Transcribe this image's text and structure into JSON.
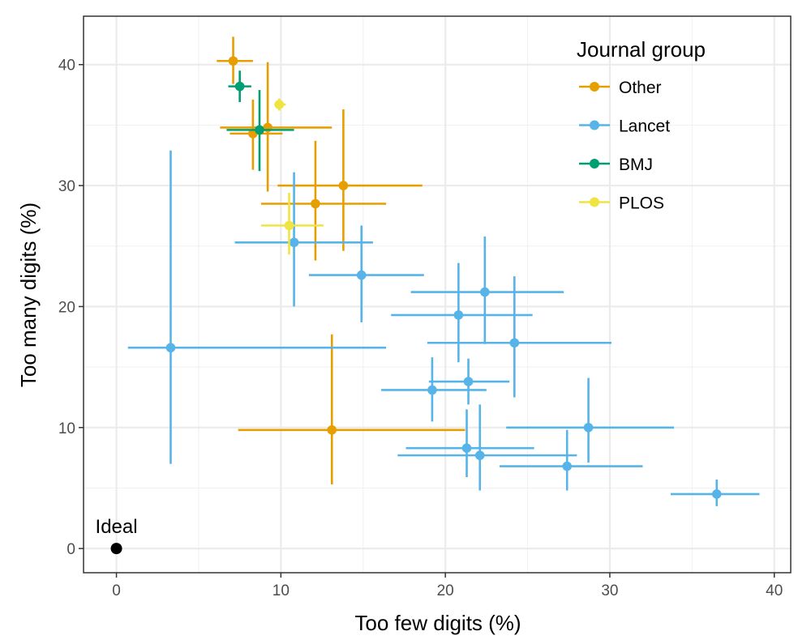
{
  "chart_data": {
    "type": "scatter",
    "xlabel": "Too few digits (%)",
    "ylabel": "Too many digits (%)",
    "xlim": [
      -2,
      41
    ],
    "ylim": [
      -2,
      44
    ],
    "x_ticks": [
      0,
      10,
      20,
      30,
      40
    ],
    "y_ticks": [
      0,
      10,
      20,
      30,
      40
    ],
    "grid": true,
    "legend": {
      "title": "Journal group",
      "position": "top-right",
      "entries": [
        {
          "name": "Other",
          "color": "#E69F00"
        },
        {
          "name": "Lancet",
          "color": "#56B4E9"
        },
        {
          "name": "BMJ",
          "color": "#009E73"
        },
        {
          "name": "PLOS",
          "color": "#F0E442"
        }
      ]
    },
    "annotations": [
      {
        "label": "Ideal",
        "x": 0,
        "y": 0,
        "color": "#000000"
      }
    ],
    "series": [
      {
        "name": "Other",
        "color": "#E69F00",
        "points": [
          {
            "x": 7.1,
            "y": 40.3,
            "xmin": 6.1,
            "xmax": 8.3,
            "ymin": 38.4,
            "ymax": 42.3
          },
          {
            "x": 9.2,
            "y": 34.8,
            "xmin": 6.3,
            "xmax": 13.1,
            "ymin": 29.5,
            "ymax": 40.2
          },
          {
            "x": 8.3,
            "y": 34.3,
            "xmin": 6.9,
            "xmax": 10.1,
            "ymin": 31.3,
            "ymax": 37.1
          },
          {
            "x": 13.8,
            "y": 30.0,
            "xmin": 9.8,
            "xmax": 18.6,
            "ymin": 24.6,
            "ymax": 36.3
          },
          {
            "x": 12.1,
            "y": 28.5,
            "xmin": 8.8,
            "xmax": 16.4,
            "ymin": 23.8,
            "ymax": 33.7
          },
          {
            "x": 13.1,
            "y": 9.8,
            "xmin": 7.4,
            "xmax": 21.2,
            "ymin": 5.3,
            "ymax": 17.7
          }
        ]
      },
      {
        "name": "Lancet",
        "color": "#56B4E9",
        "points": [
          {
            "x": 10.8,
            "y": 25.3,
            "xmin": 7.2,
            "xmax": 15.6,
            "ymin": 20.0,
            "ymax": 31.1
          },
          {
            "x": 14.9,
            "y": 22.6,
            "xmin": 11.7,
            "xmax": 18.7,
            "ymin": 18.7,
            "ymax": 26.7
          },
          {
            "x": 22.4,
            "y": 21.2,
            "xmin": 17.9,
            "xmax": 27.2,
            "ymin": 16.9,
            "ymax": 25.8
          },
          {
            "x": 20.8,
            "y": 19.3,
            "xmin": 16.7,
            "xmax": 25.3,
            "ymin": 15.4,
            "ymax": 23.6
          },
          {
            "x": 24.2,
            "y": 17.0,
            "xmin": 18.9,
            "xmax": 30.1,
            "ymin": 12.5,
            "ymax": 22.5
          },
          {
            "x": 3.3,
            "y": 16.6,
            "xmin": 0.7,
            "xmax": 16.4,
            "ymin": 7.0,
            "ymax": 32.9
          },
          {
            "x": 21.4,
            "y": 13.8,
            "xmin": 19.0,
            "xmax": 23.9,
            "ymin": 11.9,
            "ymax": 15.7
          },
          {
            "x": 19.2,
            "y": 13.1,
            "xmin": 16.1,
            "xmax": 22.5,
            "ymin": 10.5,
            "ymax": 15.8
          },
          {
            "x": 28.7,
            "y": 10.0,
            "xmin": 23.7,
            "xmax": 33.9,
            "ymin": 7.1,
            "ymax": 14.1
          },
          {
            "x": 21.3,
            "y": 8.3,
            "xmin": 17.6,
            "xmax": 25.4,
            "ymin": 5.9,
            "ymax": 11.5
          },
          {
            "x": 22.1,
            "y": 7.7,
            "xmin": 17.1,
            "xmax": 28.0,
            "ymin": 4.8,
            "ymax": 11.9
          },
          {
            "x": 27.4,
            "y": 6.8,
            "xmin": 23.3,
            "xmax": 32.0,
            "ymin": 4.8,
            "ymax": 9.8
          },
          {
            "x": 36.5,
            "y": 4.5,
            "xmin": 33.7,
            "xmax": 39.1,
            "ymin": 3.5,
            "ymax": 5.7
          }
        ]
      },
      {
        "name": "BMJ",
        "color": "#009E73",
        "points": [
          {
            "x": 7.5,
            "y": 38.2,
            "xmin": 6.8,
            "xmax": 8.2,
            "ymin": 36.9,
            "ymax": 39.5
          },
          {
            "x": 8.7,
            "y": 34.6,
            "xmin": 6.7,
            "xmax": 10.8,
            "ymin": 31.2,
            "ymax": 37.9
          }
        ]
      },
      {
        "name": "PLOS",
        "color": "#F0E442",
        "points": [
          {
            "x": 9.9,
            "y": 36.7,
            "xmin": 9.6,
            "xmax": 10.3,
            "ymin": 36.2,
            "ymax": 37.2
          },
          {
            "x": 10.5,
            "y": 26.7,
            "xmin": 8.8,
            "xmax": 12.6,
            "ymin": 24.3,
            "ymax": 29.4
          }
        ]
      }
    ]
  }
}
